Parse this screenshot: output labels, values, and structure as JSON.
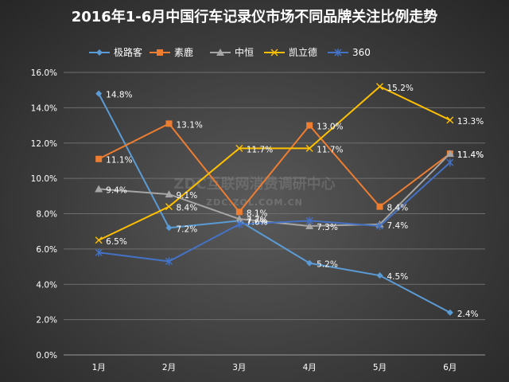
{
  "chart_data": {
    "type": "line",
    "title": "2016年1-6月中国行车记录仪市场不同品牌关注比例走势",
    "categories": [
      "1月",
      "2月",
      "3月",
      "4月",
      "5月",
      "6月"
    ],
    "ylim": [
      0,
      16
    ],
    "yticks": [
      "0.0%",
      "2.0%",
      "4.0%",
      "6.0%",
      "8.0%",
      "10.0%",
      "12.0%",
      "14.0%",
      "16.0%"
    ],
    "grid": true,
    "legend_position": "top",
    "series": [
      {
        "name": "极路客",
        "color": "#5b9bd5",
        "marker": "diamond",
        "values": [
          14.8,
          7.2,
          7.6,
          5.2,
          4.5,
          2.4
        ],
        "labels": [
          "14.8%",
          "7.2%",
          "7.6%",
          "5.2%",
          "4.5%",
          "2.4%"
        ]
      },
      {
        "name": "素鹿",
        "color": "#ed7d31",
        "marker": "square",
        "values": [
          11.1,
          13.1,
          8.1,
          13.0,
          8.4,
          11.4
        ],
        "labels": [
          "11.1%",
          "13.1%",
          "8.1%",
          "13.0%",
          "8.4%",
          "11.4%"
        ]
      },
      {
        "name": "中恒",
        "color": "#a5a5a5",
        "marker": "triangle",
        "values": [
          9.4,
          9.1,
          7.7,
          7.3,
          7.4,
          11.4
        ],
        "labels": [
          "9.4%",
          "9.1%",
          "7.7%",
          "7.3%",
          "7.4%",
          "11.4%"
        ]
      },
      {
        "name": "凯立德",
        "color": "#ffc000",
        "marker": "x",
        "values": [
          6.5,
          8.4,
          11.7,
          11.7,
          15.2,
          13.3
        ],
        "labels": [
          "6.5%",
          "8.4%",
          "11.7%",
          "11.7%",
          "15.2%",
          "13.3%"
        ]
      },
      {
        "name": "360",
        "color": "#4472c4",
        "marker": "star",
        "values": [
          5.8,
          5.3,
          7.4,
          7.6,
          7.3,
          10.9
        ]
      }
    ]
  },
  "watermark": {
    "cn": "ZDC互联网消费调研中心",
    "en": "ZDC.ZOL.COM.CN"
  }
}
